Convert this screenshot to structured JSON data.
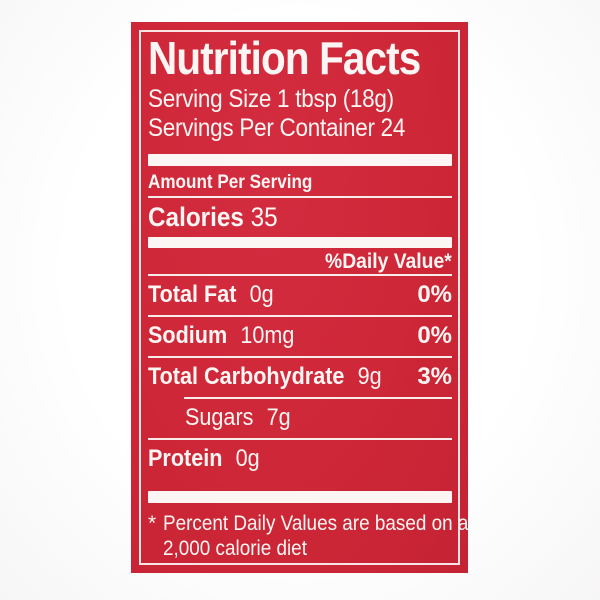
{
  "label": {
    "colors": {
      "red": "#ce2737",
      "white": "#fbf5f3",
      "page_bg": "#fdfdfd"
    },
    "title": "Nutrition Facts",
    "serving": {
      "size_line": "Serving Size 1 tbsp (18g)",
      "per_container_line": "Servings Per Container 24"
    },
    "amount_per_serving": "Amount Per Serving",
    "calories": {
      "label": "Calories",
      "value": "35"
    },
    "daily_value_header": "%Daily Value*",
    "nutrients": [
      {
        "name": "Total Fat",
        "amount": "0g",
        "daily_value": "0%"
      },
      {
        "name": "Sodium",
        "amount": "10mg",
        "daily_value": "0%"
      },
      {
        "name": "Total Carbohydrate",
        "amount": "9g",
        "daily_value": "3%"
      },
      {
        "name": "Sugars",
        "amount": "7g",
        "daily_value": ""
      },
      {
        "name": "Protein",
        "amount": "0g",
        "daily_value": ""
      }
    ],
    "footnote": {
      "marker": "*",
      "line1": "Percent Daily Values are based on a",
      "line2": "2,000 calorie diet"
    }
  }
}
